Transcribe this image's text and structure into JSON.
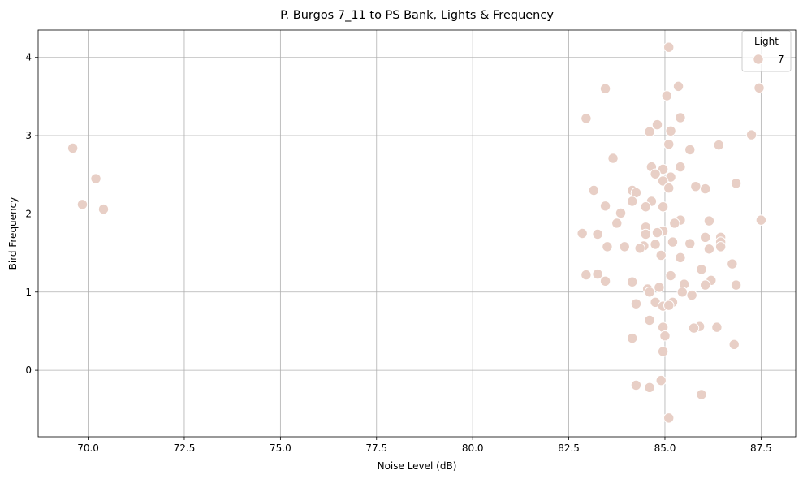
{
  "chart_data": {
    "type": "scatter",
    "title": "P. Burgos 7_11 to PS Bank, Lights & Frequency",
    "xlabel": "Noise Level (dB)",
    "ylabel": "Bird Frequency",
    "xlim": [
      68.7,
      88.4
    ],
    "ylim": [
      -0.85,
      4.35
    ],
    "xticks": [
      70.0,
      72.5,
      75.0,
      77.5,
      80.0,
      82.5,
      85.0,
      87.5
    ],
    "xtick_labels": [
      "70.0",
      "72.5",
      "75.0",
      "77.5",
      "80.0",
      "82.5",
      "85.0",
      "87.5"
    ],
    "yticks": [
      0,
      1,
      2,
      3,
      4
    ],
    "ytick_labels": [
      "0",
      "1",
      "2",
      "3",
      "4"
    ],
    "grid": true,
    "legend": {
      "title": "Light",
      "position": "top-right",
      "entries": [
        {
          "label": "7",
          "color": "#e8cfc6"
        }
      ]
    },
    "marker_color": "#e8cfc6",
    "series": [
      {
        "name": "7",
        "points": [
          [
            69.6,
            2.84
          ],
          [
            70.2,
            2.45
          ],
          [
            69.85,
            2.12
          ],
          [
            70.4,
            2.06
          ],
          [
            85.1,
            4.13
          ],
          [
            85.35,
            3.63
          ],
          [
            83.45,
            3.6
          ],
          [
            87.45,
            3.61
          ],
          [
            85.05,
            3.51
          ],
          [
            85.4,
            3.23
          ],
          [
            82.95,
            3.22
          ],
          [
            84.8,
            3.14
          ],
          [
            84.6,
            3.05
          ],
          [
            85.15,
            3.06
          ],
          [
            87.25,
            3.01
          ],
          [
            85.1,
            2.89
          ],
          [
            86.4,
            2.88
          ],
          [
            85.65,
            2.82
          ],
          [
            83.65,
            2.71
          ],
          [
            84.65,
            2.6
          ],
          [
            85.4,
            2.6
          ],
          [
            84.95,
            2.57
          ],
          [
            84.75,
            2.51
          ],
          [
            85.15,
            2.47
          ],
          [
            84.95,
            2.42
          ],
          [
            86.85,
            2.39
          ],
          [
            85.8,
            2.35
          ],
          [
            86.05,
            2.32
          ],
          [
            85.1,
            2.33
          ],
          [
            83.15,
            2.3
          ],
          [
            84.15,
            2.3
          ],
          [
            84.25,
            2.27
          ],
          [
            84.15,
            2.16
          ],
          [
            84.65,
            2.16
          ],
          [
            83.45,
            2.1
          ],
          [
            84.5,
            2.09
          ],
          [
            84.95,
            2.09
          ],
          [
            83.85,
            2.01
          ],
          [
            85.4,
            1.92
          ],
          [
            86.15,
            1.91
          ],
          [
            87.5,
            1.92
          ],
          [
            85.25,
            1.88
          ],
          [
            83.75,
            1.88
          ],
          [
            84.5,
            1.83
          ],
          [
            84.95,
            1.78
          ],
          [
            84.8,
            1.76
          ],
          [
            84.5,
            1.74
          ],
          [
            82.85,
            1.75
          ],
          [
            83.25,
            1.74
          ],
          [
            86.45,
            1.7
          ],
          [
            86.05,
            1.7
          ],
          [
            86.45,
            1.64
          ],
          [
            85.2,
            1.64
          ],
          [
            85.65,
            1.62
          ],
          [
            84.75,
            1.61
          ],
          [
            84.45,
            1.59
          ],
          [
            83.5,
            1.58
          ],
          [
            83.95,
            1.58
          ],
          [
            86.45,
            1.58
          ],
          [
            84.35,
            1.56
          ],
          [
            86.15,
            1.55
          ],
          [
            84.9,
            1.47
          ],
          [
            85.4,
            1.44
          ],
          [
            86.75,
            1.36
          ],
          [
            85.95,
            1.29
          ],
          [
            83.25,
            1.23
          ],
          [
            82.95,
            1.22
          ],
          [
            85.15,
            1.21
          ],
          [
            86.2,
            1.15
          ],
          [
            83.45,
            1.14
          ],
          [
            84.15,
            1.13
          ],
          [
            85.5,
            1.1
          ],
          [
            86.85,
            1.09
          ],
          [
            86.05,
            1.09
          ],
          [
            84.85,
            1.06
          ],
          [
            84.55,
            1.04
          ],
          [
            84.6,
            1.0
          ],
          [
            85.45,
            1.0
          ],
          [
            85.7,
            0.96
          ],
          [
            84.75,
            0.87
          ],
          [
            85.2,
            0.87
          ],
          [
            84.25,
            0.85
          ],
          [
            84.95,
            0.82
          ],
          [
            85.1,
            0.83
          ],
          [
            84.6,
            0.64
          ],
          [
            85.9,
            0.56
          ],
          [
            85.75,
            0.54
          ],
          [
            86.35,
            0.55
          ],
          [
            84.95,
            0.55
          ],
          [
            85.0,
            0.44
          ],
          [
            84.15,
            0.41
          ],
          [
            86.8,
            0.33
          ],
          [
            84.95,
            0.24
          ],
          [
            84.9,
            -0.13
          ],
          [
            84.25,
            -0.19
          ],
          [
            84.6,
            -0.22
          ],
          [
            85.95,
            -0.31
          ],
          [
            85.1,
            -0.61
          ]
        ]
      }
    ]
  }
}
